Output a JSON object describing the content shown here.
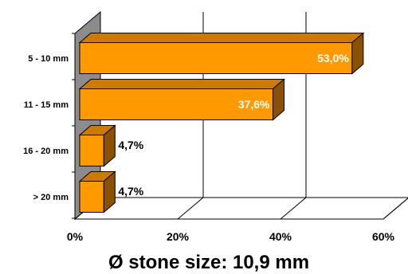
{
  "chart_data": {
    "type": "bar",
    "orientation": "horizontal",
    "three_d": true,
    "categories": [
      "5 - 10 mm",
      "11 - 15 mm",
      "16 - 20 mm",
      "> 20 mm"
    ],
    "values": [
      53.0,
      37.6,
      4.7,
      4.7
    ],
    "data_labels": [
      "53,0%",
      "37,6%",
      "4,7%",
      "4,7%"
    ],
    "title": "",
    "xlabel": "Ø stone size: 10,9 mm",
    "ylabel": "",
    "xlim": [
      0,
      60
    ],
    "x_ticks": [
      0,
      20,
      40,
      60
    ],
    "x_tick_labels": [
      "0%",
      "20%",
      "40%",
      "60%"
    ],
    "grid": true,
    "legend": "none",
    "colors": {
      "bar_front": "#FF9900",
      "bar_top": "#CC7A00",
      "bar_side": "#8A5200",
      "wall": "#8C8C8C",
      "floor": "#ffffff",
      "gridline": "#000000",
      "label_inside": "#ffffff",
      "label_outside": "#000000"
    }
  }
}
